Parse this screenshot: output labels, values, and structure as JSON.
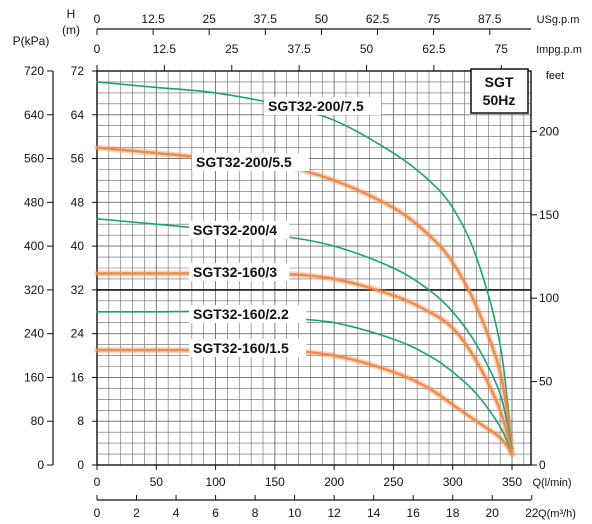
{
  "chart_data": {
    "type": "line",
    "badge": {
      "line1": "SGT",
      "line2": "50Hz"
    },
    "axes": {
      "q_lmin": {
        "label": "Q(l/min)",
        "range": [
          0,
          350
        ],
        "ticks": [
          "0",
          "50",
          "100",
          "150",
          "200",
          "250",
          "300",
          "350"
        ]
      },
      "q_m3h": {
        "label": "Q(m³/h)",
        "range": [
          0,
          22
        ],
        "ticks": [
          "0",
          "2",
          "4",
          "6",
          "8",
          "10",
          "12",
          "14",
          "16",
          "18",
          "20",
          "22"
        ]
      },
      "us_gpm": {
        "label": "USg.p.m",
        "ticks": [
          "0",
          "12.5",
          "25",
          "37.5",
          "50",
          "62.5",
          "75",
          "87.5"
        ],
        "values": [
          0,
          12.5,
          25,
          37.5,
          50,
          62.5,
          75,
          87.5
        ]
      },
      "imp_gpm": {
        "label": "Impg.p.m",
        "ticks": [
          "0",
          "12.5",
          "25",
          "37.5",
          "50",
          "62.5",
          "75"
        ],
        "values": [
          0,
          12.5,
          25,
          37.5,
          50,
          62.5,
          75
        ]
      },
      "head_m": {
        "title": "H",
        "unit": "(m)",
        "range": [
          0,
          72
        ],
        "ticks": [
          "0",
          "8",
          "16",
          "24",
          "32",
          "40",
          "48",
          "56",
          "64",
          "72"
        ]
      },
      "pressure_kpa": {
        "title": "P(kPa)",
        "ticks": [
          "0",
          "80",
          "160",
          "240",
          "320",
          "400",
          "480",
          "560",
          "640",
          "720"
        ]
      },
      "feet": {
        "label": "feet",
        "ticks": [
          "0",
          "50",
          "100",
          "150",
          "200"
        ],
        "values": [
          0,
          50,
          100,
          150,
          200
        ]
      }
    },
    "series": [
      {
        "name": "SGT32-200/7.5",
        "color": "#1aa37a",
        "x": [
          0,
          50,
          100,
          150,
          200,
          250,
          280,
          300,
          320,
          340,
          350
        ],
        "y": [
          70,
          69,
          68,
          66,
          63,
          57,
          52,
          47,
          38,
          22,
          3
        ]
      },
      {
        "name": "SGT32-200/5.5",
        "color": "#ef8a4a",
        "x": [
          0,
          50,
          100,
          150,
          200,
          250,
          280,
          300,
          320,
          340,
          350
        ],
        "y": [
          58,
          57,
          56,
          55,
          52,
          47,
          42,
          37,
          29,
          17,
          3
        ]
      },
      {
        "name": "SGT32-200/4",
        "color": "#1aa37a",
        "x": [
          0,
          50,
          100,
          150,
          200,
          250,
          280,
          300,
          320,
          340,
          350
        ],
        "y": [
          45,
          44,
          43,
          42,
          40,
          36,
          32,
          28,
          22,
          13,
          3
        ]
      },
      {
        "name": "SGT32-160/3",
        "color": "#ef8a4a",
        "x": [
          0,
          50,
          100,
          150,
          200,
          250,
          280,
          300,
          320,
          340,
          350
        ],
        "y": [
          35,
          35,
          35,
          35,
          34,
          31,
          28,
          25,
          19,
          10,
          2
        ]
      },
      {
        "name": "SGT32-160/2.2",
        "color": "#1aa37a",
        "x": [
          0,
          50,
          100,
          150,
          200,
          250,
          280,
          300,
          320,
          340,
          350
        ],
        "y": [
          28,
          28,
          28,
          27,
          26,
          23,
          20,
          17,
          13,
          7,
          2
        ]
      },
      {
        "name": "SGT32-160/1.5",
        "color": "#ef8a4a",
        "x": [
          0,
          50,
          100,
          150,
          200,
          250,
          280,
          300,
          320,
          340,
          350
        ],
        "y": [
          21,
          21,
          21,
          21,
          20,
          17,
          14,
          11,
          8,
          5,
          2
        ]
      }
    ]
  }
}
